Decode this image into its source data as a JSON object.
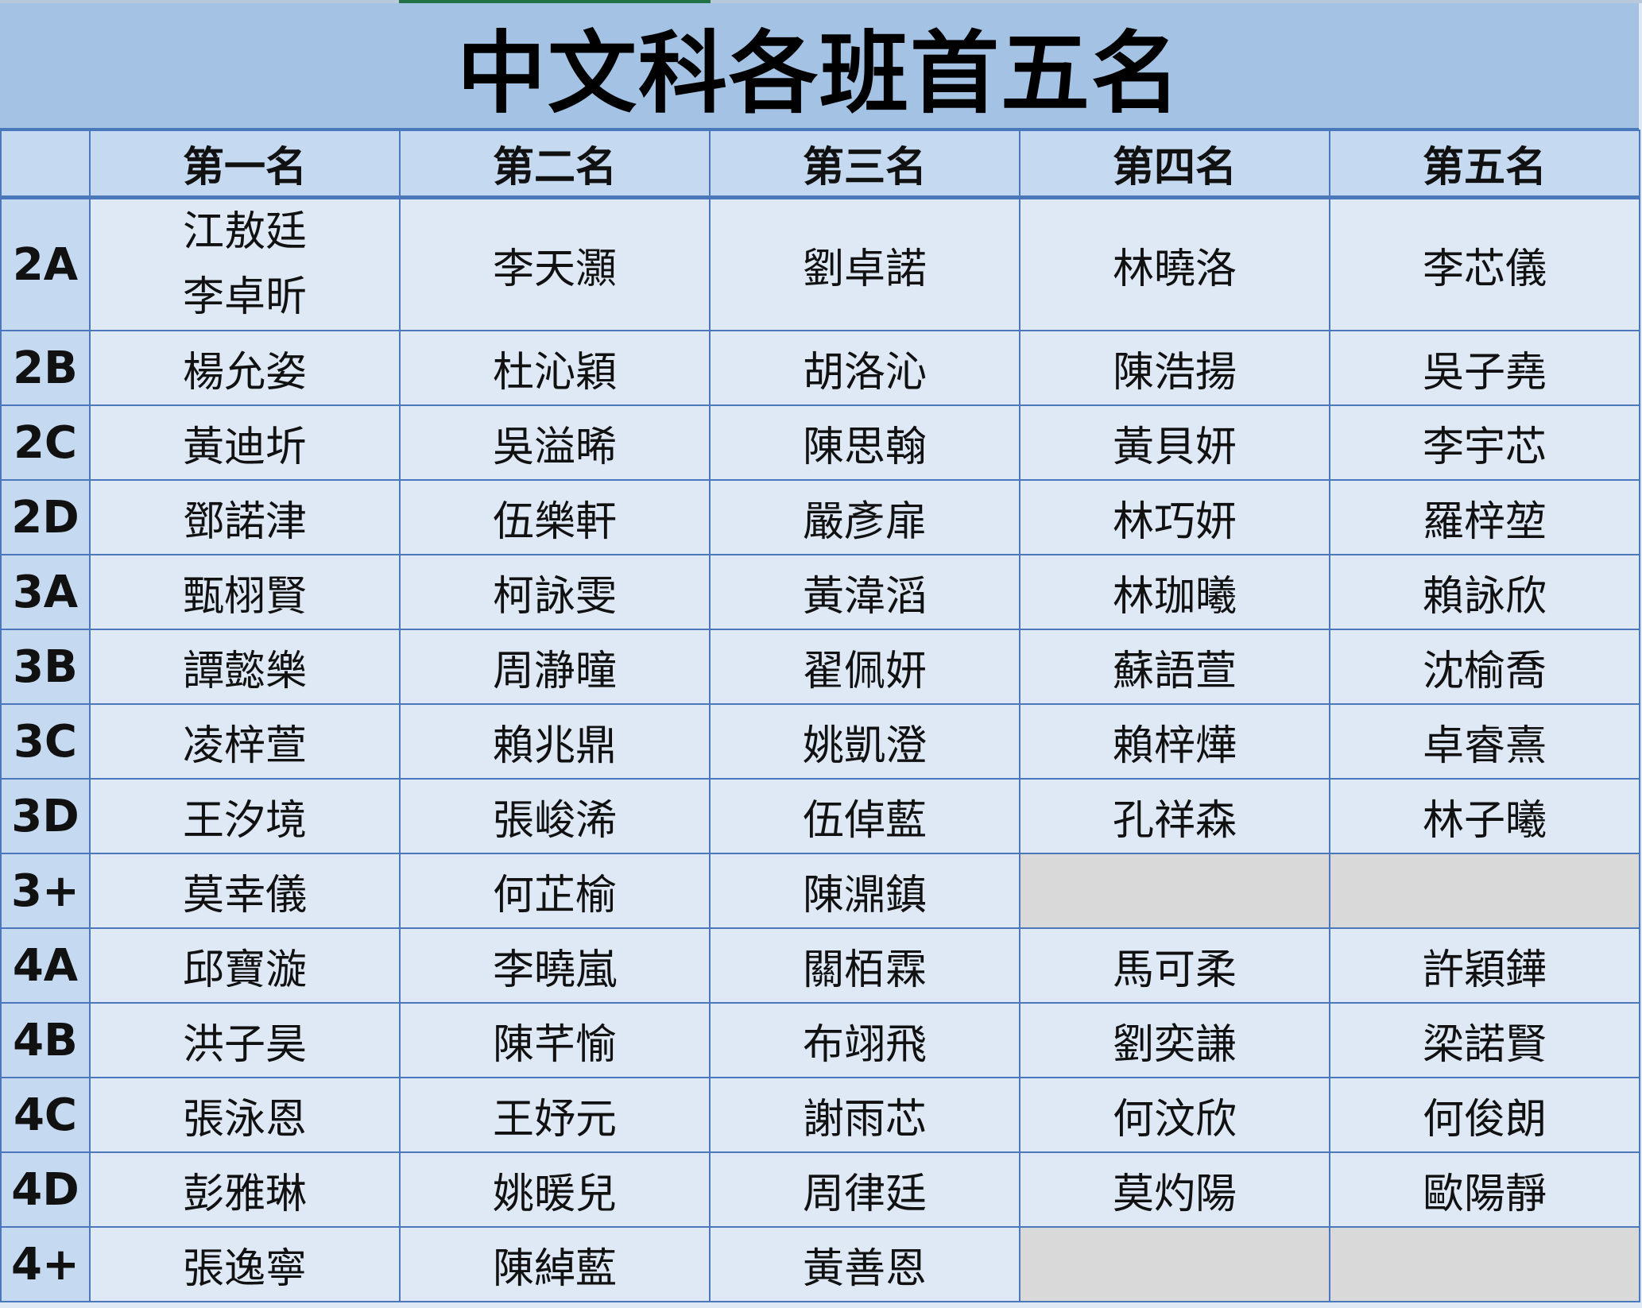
{
  "title": "中文科各班首五名",
  "colors": {
    "title_bg": "#a4c2e4",
    "header_bg": "#c5d9f0",
    "cell_bg": "#dfe9f6",
    "grid": "#4a78bb",
    "empty_cell": "#d9d9d9"
  },
  "headers": [
    "第一名",
    "第二名",
    "第三名",
    "第四名",
    "第五名"
  ],
  "rows": [
    {
      "class": "2A",
      "names": [
        [
          "江敖廷",
          "李卓昕"
        ],
        "李天灝",
        "劉卓諾",
        "林曉洛",
        "李芯儀"
      ]
    },
    {
      "class": "2B",
      "names": [
        "楊允姿",
        "杜沁穎",
        "胡洛沁",
        "陳浩揚",
        "吳子堯"
      ]
    },
    {
      "class": "2C",
      "names": [
        "黃迪圻",
        "吳溢晞",
        "陳思翰",
        "黃貝妍",
        "李宇芯"
      ]
    },
    {
      "class": "2D",
      "names": [
        "鄧諾津",
        "伍樂軒",
        "嚴彥扉",
        "林巧妍",
        "羅梓堃"
      ]
    },
    {
      "class": "3A",
      "names": [
        "甄栩賢",
        "柯詠雯",
        "黃湋滔",
        "林珈曦",
        "賴詠欣"
      ]
    },
    {
      "class": "3B",
      "names": [
        "譚懿樂",
        "周瀞曈",
        "翟佩妍",
        "蘇語萱",
        "沈榆喬"
      ]
    },
    {
      "class": "3C",
      "names": [
        "凌梓萱",
        "賴兆鼎",
        "姚凱澄",
        "賴梓燁",
        "卓睿熹"
      ]
    },
    {
      "class": "3D",
      "names": [
        "王汐境",
        "張峻浠",
        "伍倬藍",
        "孔祥森",
        "林子曦"
      ]
    },
    {
      "class": "3+",
      "names": [
        "莫幸儀",
        "何芷榆",
        "陳濎鎮",
        null,
        null
      ]
    },
    {
      "class": "4A",
      "names": [
        "邱寶漩",
        "李曉嵐",
        "關栢霖",
        "馬可柔",
        "許穎鏵"
      ]
    },
    {
      "class": "4B",
      "names": [
        "洪子昊",
        "陳芊愉",
        "布翊飛",
        "劉奕謙",
        "梁諾賢"
      ]
    },
    {
      "class": "4C",
      "names": [
        "張泳恩",
        "王妤元",
        "謝雨芯",
        "何汶欣",
        "何俊朗"
      ]
    },
    {
      "class": "4D",
      "names": [
        "彭雅琳",
        "姚暖兒",
        "周律廷",
        "莫灼陽",
        "歐陽靜"
      ]
    },
    {
      "class": "4+",
      "names": [
        "張逸寧",
        "陳綽藍",
        "黃善恩",
        null,
        null
      ]
    }
  ]
}
